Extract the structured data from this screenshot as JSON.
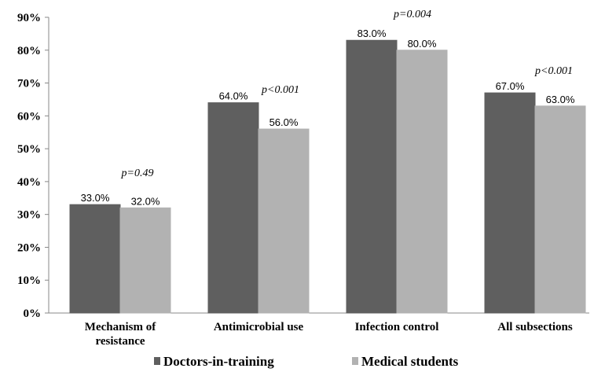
{
  "chart_data": {
    "type": "bar",
    "title": "",
    "xlabel": "",
    "ylabel": "",
    "ylim": [
      0,
      90
    ],
    "y_ticks": [
      "0%",
      "10%",
      "20%",
      "30%",
      "40%",
      "50%",
      "60%",
      "70%",
      "80%",
      "90%"
    ],
    "categories": [
      [
        "Mechanism of",
        "resistance"
      ],
      [
        "Antimicrobial use"
      ],
      [
        "Infection control"
      ],
      [
        "All subsections"
      ]
    ],
    "series": [
      {
        "name": "Doctors-in-training",
        "color": "#5f5f5f",
        "values": [
          33,
          64,
          83,
          67
        ],
        "labels": [
          "33.0%",
          "64.0%",
          "83.0%",
          "67.0%"
        ]
      },
      {
        "name": "Medical students",
        "color": "#b2b2b2",
        "values": [
          32,
          56,
          80,
          63
        ],
        "labels": [
          "32.0%",
          "56.0%",
          "80.0%",
          "63.0%"
        ]
      }
    ],
    "p_values": [
      "p=0.49",
      "p<0.001",
      "p=0.004",
      "p<0.001"
    ],
    "grid": false,
    "legend_position": "bottom"
  }
}
